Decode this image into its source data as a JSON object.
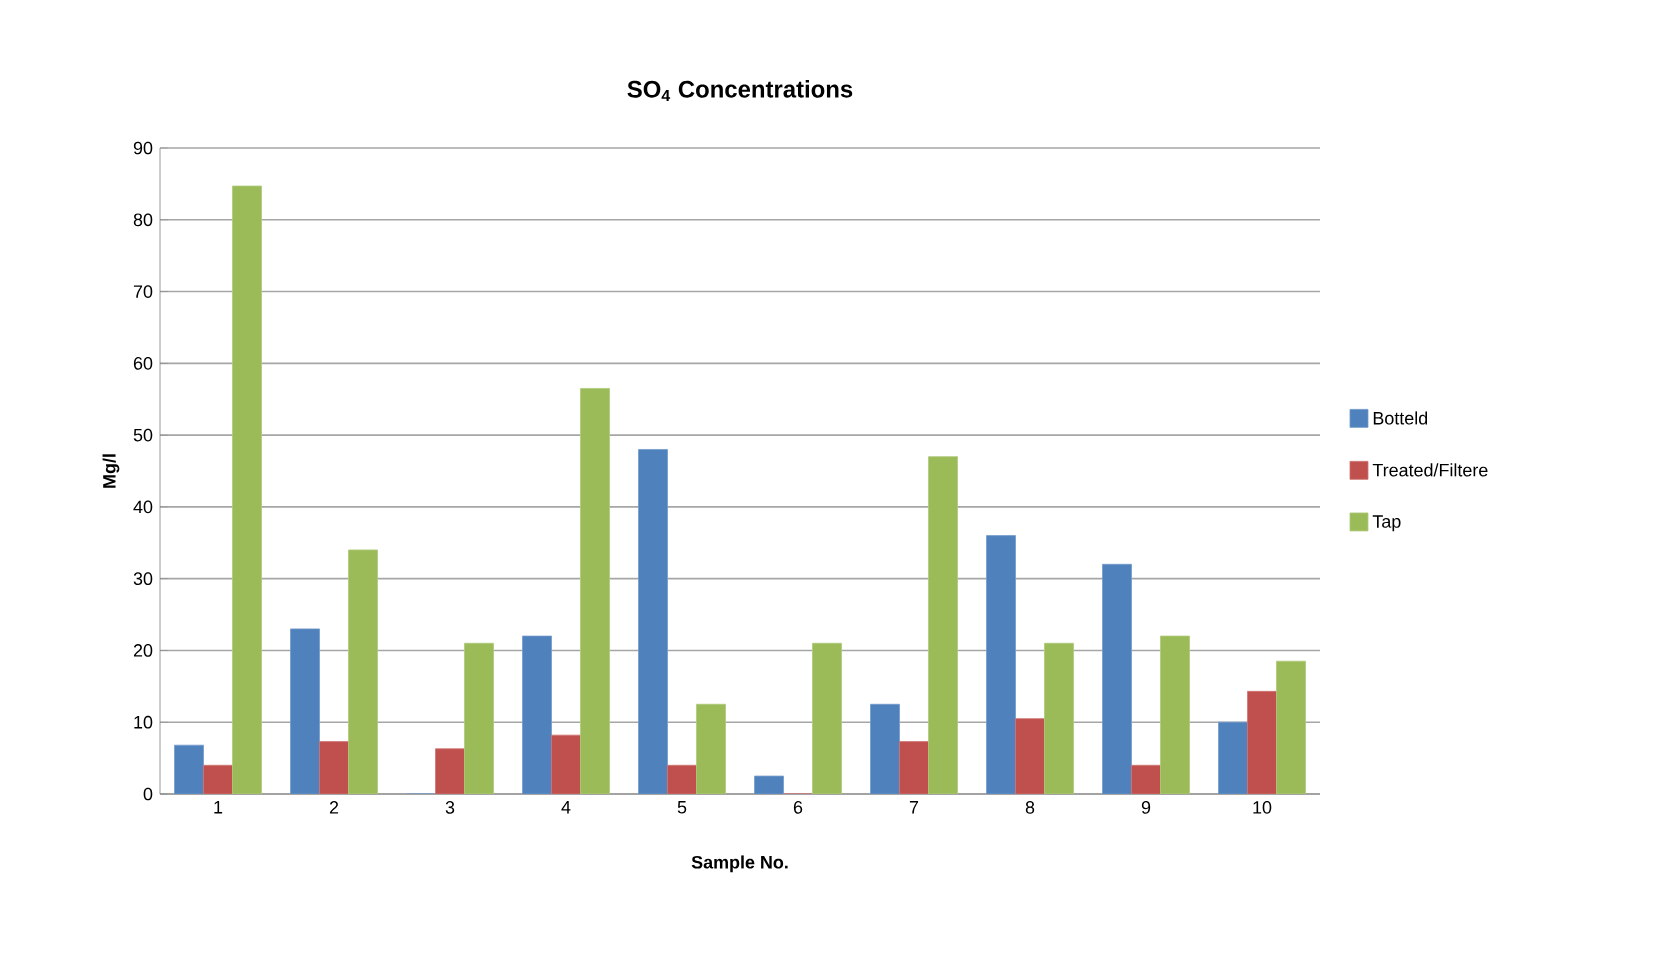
{
  "chart_data": {
    "type": "bar",
    "title": "SO$_{4}$ Concentrations",
    "xlabel": "Sample No.",
    "ylabel": "Mg/l",
    "categories": [
      "1",
      "2",
      "3",
      "4",
      "5",
      "6",
      "7",
      "8",
      "9",
      "10"
    ],
    "series": [
      {
        "name": "Botteld",
        "color": "#4f81bd",
        "values": [
          6.8,
          23,
          0,
          22,
          48,
          2.5,
          12.5,
          36,
          32,
          10
        ]
      },
      {
        "name": "Treated/Filtere",
        "color": "#c0504d",
        "values": [
          4,
          7.3,
          6.3,
          8.2,
          4,
          0,
          7.3,
          10.5,
          4,
          14.3
        ]
      },
      {
        "name": "Tap",
        "color": "#9bbb59",
        "values": [
          84.7,
          34,
          21,
          56.5,
          12.5,
          21,
          47,
          21,
          22,
          18.5
        ]
      }
    ],
    "ylim": [
      0,
      90
    ],
    "yticks": [
      0,
      10,
      20,
      30,
      40,
      50,
      60,
      70,
      80,
      90
    ],
    "grid": "y",
    "legend": "right"
  }
}
